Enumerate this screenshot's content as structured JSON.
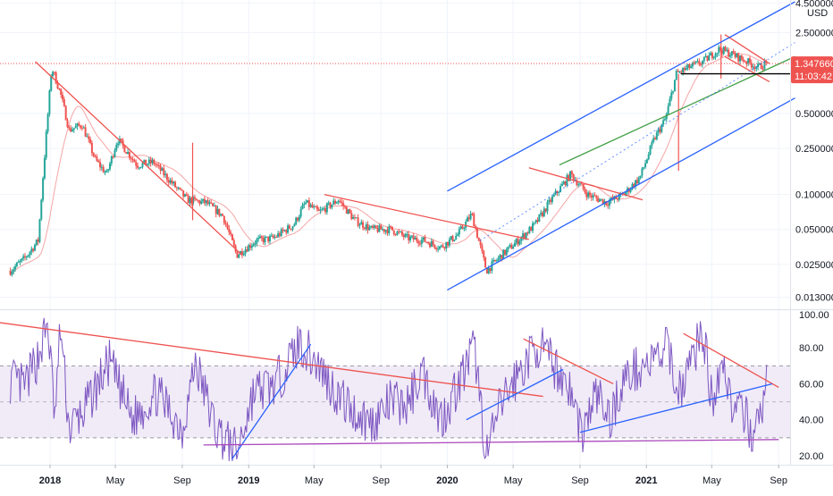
{
  "chart_data": [
    {
      "type": "candlestick",
      "pane": "price",
      "scale": "log",
      "currency_label": "USD",
      "ylim": [
        0.011,
        4.6
      ],
      "y_ticks": [
        {
          "value": 4.5,
          "label": "4.500000"
        },
        {
          "value": 2.5,
          "label": "2.500000"
        },
        {
          "value": 0.5,
          "label": "0.500000"
        },
        {
          "value": 0.25,
          "label": "0.250000"
        },
        {
          "value": 0.1,
          "label": "0.100000"
        },
        {
          "value": 0.05,
          "label": "0.050000"
        },
        {
          "value": 0.025,
          "label": "0.025000"
        },
        {
          "value": 0.013,
          "label": "0.013000"
        }
      ],
      "last_price": {
        "value": 1.34766,
        "label": "1.347660",
        "countdown": "11:03:42",
        "color": "#ef5350"
      },
      "horizontal_levels": [
        {
          "value": 1.1,
          "color": "#000000"
        }
      ],
      "close_path": [
        [
          "2017-10-20",
          0.022
        ],
        [
          "2017-11-15",
          0.028
        ],
        [
          "2017-12-10",
          0.04
        ],
        [
          "2017-12-25",
          0.33
        ],
        [
          "2018-01-04",
          1.25
        ],
        [
          "2018-01-20",
          0.75
        ],
        [
          "2018-02-05",
          0.36
        ],
        [
          "2018-03-01",
          0.4
        ],
        [
          "2018-03-25",
          0.2
        ],
        [
          "2018-04-15",
          0.15
        ],
        [
          "2018-05-05",
          0.3
        ],
        [
          "2018-06-10",
          0.18
        ],
        [
          "2018-07-10",
          0.19
        ],
        [
          "2018-08-10",
          0.13
        ],
        [
          "2018-09-10",
          0.09
        ],
        [
          "2018-10-15",
          0.085
        ],
        [
          "2018-11-15",
          0.065
        ],
        [
          "2018-12-10",
          0.03
        ],
        [
          "2019-01-15",
          0.04
        ],
        [
          "2019-02-15",
          0.042
        ],
        [
          "2019-03-25",
          0.055
        ],
        [
          "2019-04-15",
          0.085
        ],
        [
          "2019-05-10",
          0.07
        ],
        [
          "2019-06-15",
          0.09
        ],
        [
          "2019-07-15",
          0.06
        ],
        [
          "2019-08-15",
          0.05
        ],
        [
          "2019-09-20",
          0.05
        ],
        [
          "2019-10-20",
          0.042
        ],
        [
          "2019-11-20",
          0.04
        ],
        [
          "2019-12-20",
          0.035
        ],
        [
          "2020-01-20",
          0.045
        ],
        [
          "2020-02-15",
          0.068
        ],
        [
          "2020-03-13",
          0.022
        ],
        [
          "2020-04-10",
          0.03
        ],
        [
          "2020-05-10",
          0.04
        ],
        [
          "2020-06-10",
          0.055
        ],
        [
          "2020-07-10",
          0.09
        ],
        [
          "2020-08-15",
          0.15
        ],
        [
          "2020-09-15",
          0.1
        ],
        [
          "2020-10-20",
          0.085
        ],
        [
          "2020-11-20",
          0.1
        ],
        [
          "2020-12-20",
          0.14
        ],
        [
          "2021-01-15",
          0.3
        ],
        [
          "2021-02-05",
          0.45
        ],
        [
          "2021-02-25",
          1.1
        ],
        [
          "2021-03-20",
          1.25
        ],
        [
          "2021-04-15",
          1.4
        ],
        [
          "2021-05-15",
          1.8
        ],
        [
          "2021-06-10",
          1.6
        ],
        [
          "2021-07-05",
          1.4
        ],
        [
          "2021-07-25",
          1.25
        ],
        [
          "2021-08-10",
          1.35
        ]
      ],
      "spikes": [
        {
          "date": "2018-09-20",
          "low": 0.06,
          "high": 0.28
        },
        {
          "date": "2021-03-01",
          "low": 0.16,
          "high": 1.1
        },
        {
          "date": "2021-05-18",
          "low": 1.0,
          "high": 2.4
        }
      ],
      "trendlines": [
        {
          "color": "#ef5350",
          "points": [
            [
              "2017-12-05",
              1.4
            ],
            [
              "2018-12-20",
              0.03
            ]
          ]
        },
        {
          "color": "#ef5350",
          "points": [
            [
              "2019-05-20",
              0.1
            ],
            [
              "2020-05-30",
              0.041
            ]
          ]
        },
        {
          "color": "#ef5350",
          "points": [
            [
              "2020-05-30",
              0.17
            ],
            [
              "2020-12-25",
              0.09
            ]
          ]
        },
        {
          "color": "#ef5350",
          "points": [
            [
              "2021-05-25",
              2.4
            ],
            [
              "2021-08-15",
              1.35
            ]
          ]
        },
        {
          "color": "#ef5350",
          "points": [
            [
              "2021-05-25",
              1.55
            ],
            [
              "2021-08-15",
              0.94
            ]
          ]
        },
        {
          "color": "#2962ff",
          "points": [
            [
              "2020-01-01",
              0.107
            ],
            [
              "2021-10-01",
              4.6
            ]
          ]
        },
        {
          "color": "#2962ff",
          "points": [
            [
              "2020-01-01",
              0.015
            ],
            [
              "2021-10-01",
              0.68
            ]
          ]
        },
        {
          "color": "#43a047",
          "points": [
            [
              "2020-07-25",
              0.18
            ],
            [
              "2021-10-01",
              1.55
            ]
          ]
        },
        {
          "color": "#2962ff",
          "dashed": true,
          "points": [
            [
              "2020-03-01",
              0.04
            ],
            [
              "2021-10-01",
              2.05
            ]
          ]
        }
      ]
    },
    {
      "type": "line",
      "pane": "oscillator",
      "ylim": [
        15,
        100
      ],
      "y_ticks": [
        {
          "value": 100,
          "label": "100.00"
        },
        {
          "value": 80,
          "label": "80.00"
        },
        {
          "value": 60,
          "label": "60.00"
        },
        {
          "value": 40,
          "label": "40.00"
        },
        {
          "value": 20,
          "label": "20.00"
        }
      ],
      "band": {
        "upper": 70,
        "lower": 30,
        "middle": 50,
        "color": "#9575cd"
      },
      "series": [
        {
          "color": "#7e57c2"
        }
      ],
      "values_path": [
        [
          "2017-10-20",
          62
        ],
        [
          "2017-11-15",
          58
        ],
        [
          "2017-12-10",
          75
        ],
        [
          "2017-12-28",
          93
        ],
        [
          "2018-01-10",
          40
        ],
        [
          "2018-01-20",
          92
        ],
        [
          "2018-02-05",
          35
        ],
        [
          "2018-03-05",
          45
        ],
        [
          "2018-04-20",
          72
        ],
        [
          "2018-06-01",
          40
        ],
        [
          "2018-07-15",
          55
        ],
        [
          "2018-09-01",
          35
        ],
        [
          "2018-09-25",
          72
        ],
        [
          "2018-11-01",
          35
        ],
        [
          "2018-12-10",
          22
        ],
        [
          "2019-01-10",
          55
        ],
        [
          "2019-02-20",
          60
        ],
        [
          "2019-04-05",
          83
        ],
        [
          "2019-05-10",
          70
        ],
        [
          "2019-06-10",
          55
        ],
        [
          "2019-07-10",
          45
        ],
        [
          "2019-08-15",
          38
        ],
        [
          "2019-09-20",
          50
        ],
        [
          "2019-10-20",
          48
        ],
        [
          "2019-11-15",
          68
        ],
        [
          "2019-12-20",
          40
        ],
        [
          "2020-01-25",
          62
        ],
        [
          "2020-02-20",
          80
        ],
        [
          "2020-03-13",
          20
        ],
        [
          "2020-04-10",
          50
        ],
        [
          "2020-05-10",
          65
        ],
        [
          "2020-06-15",
          82
        ],
        [
          "2020-07-15",
          70
        ],
        [
          "2020-08-10",
          60
        ],
        [
          "2020-09-05",
          32
        ],
        [
          "2020-10-01",
          55
        ],
        [
          "2020-10-25",
          40
        ],
        [
          "2020-11-20",
          62
        ],
        [
          "2020-12-20",
          70
        ],
        [
          "2021-01-15",
          72
        ],
        [
          "2021-02-10",
          80
        ],
        [
          "2021-03-01",
          55
        ],
        [
          "2021-04-15",
          90
        ],
        [
          "2021-05-01",
          50
        ],
        [
          "2021-05-20",
          75
        ],
        [
          "2021-06-10",
          45
        ],
        [
          "2021-07-05",
          40
        ],
        [
          "2021-07-20",
          30
        ],
        [
          "2021-08-10",
          60
        ]
      ],
      "trendlines": [
        {
          "color": "#ef5350",
          "points": [
            [
              "2017-10-01",
              94
            ],
            [
              "2020-06-25",
              53
            ]
          ]
        },
        {
          "color": "#ef5350",
          "points": [
            [
              "2020-05-20",
              85
            ],
            [
              "2020-11-01",
              60
            ]
          ]
        },
        {
          "color": "#ef5350",
          "points": [
            [
              "2021-03-10",
              88
            ],
            [
              "2021-09-01",
              58
            ]
          ]
        },
        {
          "color": "#2962ff",
          "points": [
            [
              "2018-12-01",
              18
            ],
            [
              "2019-04-25",
              82
            ]
          ]
        },
        {
          "color": "#2962ff",
          "points": [
            [
              "2020-02-05",
              40
            ],
            [
              "2020-08-01",
              68
            ]
          ]
        },
        {
          "color": "#2962ff",
          "points": [
            [
              "2020-09-01",
              33
            ],
            [
              "2021-08-20",
              60
            ]
          ]
        },
        {
          "color": "#ab47bc",
          "points": [
            [
              "2018-10-10",
              26
            ],
            [
              "2021-09-01",
              29
            ]
          ]
        }
      ]
    }
  ],
  "time_axis": {
    "labels": [
      {
        "date": "2018-01-01",
        "label": "2018",
        "bold": true
      },
      {
        "date": "2018-05-01",
        "label": "May",
        "bold": false
      },
      {
        "date": "2018-09-01",
        "label": "Sep",
        "bold": false
      },
      {
        "date": "2019-01-01",
        "label": "2019",
        "bold": true
      },
      {
        "date": "2019-05-01",
        "label": "May",
        "bold": false
      },
      {
        "date": "2019-09-01",
        "label": "Sep",
        "bold": false
      },
      {
        "date": "2020-01-01",
        "label": "2020",
        "bold": true
      },
      {
        "date": "2020-05-01",
        "label": "May",
        "bold": false
      },
      {
        "date": "2020-09-01",
        "label": "Sep",
        "bold": false
      },
      {
        "date": "2021-01-01",
        "label": "2021",
        "bold": true
      },
      {
        "date": "2021-05-01",
        "label": "May",
        "bold": false
      },
      {
        "date": "2021-09-01",
        "label": "Sep",
        "bold": false
      }
    ]
  },
  "colors": {
    "candle_up": "#26a69a",
    "candle_down": "#ef5350",
    "moving_average": "#f5a5a5",
    "band_fill": "#ede7f6",
    "grid": "#f0f3fa",
    "border": "#e0e3eb",
    "text": "#131722"
  }
}
